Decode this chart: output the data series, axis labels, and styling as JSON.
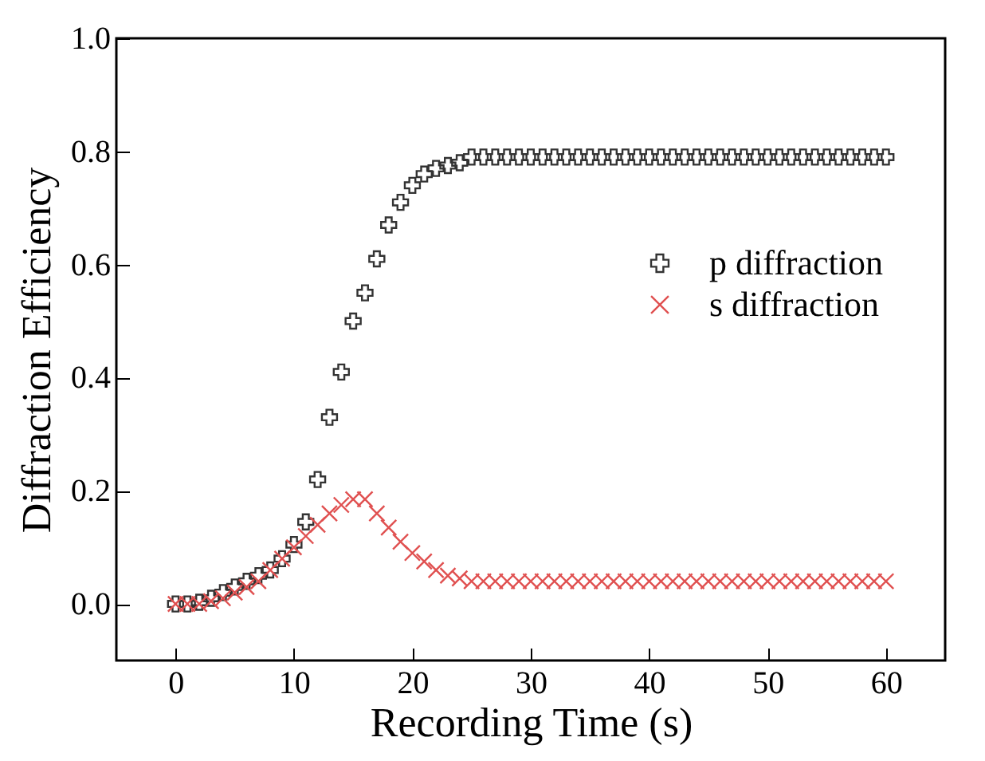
{
  "chart_data": {
    "type": "scatter",
    "xlabel": "Recording Time (s)",
    "ylabel": "Diffraction Efficiency",
    "x": [
      0,
      1,
      2,
      3,
      4,
      5,
      6,
      7,
      8,
      9,
      10,
      11,
      12,
      13,
      14,
      15,
      16,
      17,
      18,
      19,
      20,
      21,
      22,
      23,
      24,
      25,
      26,
      27,
      28,
      29,
      30,
      31,
      32,
      33,
      34,
      35,
      36,
      37,
      38,
      39,
      40,
      41,
      42,
      43,
      44,
      45,
      46,
      47,
      48,
      49,
      50,
      51,
      52,
      53,
      54,
      55,
      56,
      57,
      58,
      59,
      60
    ],
    "series": [
      {
        "name": "p diffraction",
        "color": "#333333",
        "marker": "cross",
        "values": [
          0,
          0,
          0.003,
          0.01,
          0.02,
          0.03,
          0.04,
          0.05,
          0.06,
          0.08,
          0.105,
          0.145,
          0.22,
          0.33,
          0.41,
          0.5,
          0.55,
          0.61,
          0.67,
          0.71,
          0.74,
          0.76,
          0.77,
          0.775,
          0.78,
          0.79,
          0.79,
          0.79,
          0.79,
          0.79,
          0.79,
          0.79,
          0.79,
          0.79,
          0.79,
          0.79,
          0.79,
          0.79,
          0.79,
          0.79,
          0.79,
          0.79,
          0.79,
          0.79,
          0.79,
          0.79,
          0.79,
          0.79,
          0.79,
          0.79,
          0.79,
          0.79,
          0.79,
          0.79,
          0.79,
          0.79,
          0.79,
          0.79,
          0.79,
          0.79,
          0.79
        ]
      },
      {
        "name": "s diffraction",
        "color": "#e05050",
        "marker": "x",
        "values": [
          0,
          0,
          0,
          0.005,
          0.01,
          0.02,
          0.03,
          0.04,
          0.06,
          0.08,
          0.1,
          0.12,
          0.14,
          0.16,
          0.175,
          0.185,
          0.185,
          0.16,
          0.135,
          0.11,
          0.09,
          0.075,
          0.06,
          0.05,
          0.045,
          0.04,
          0.04,
          0.04,
          0.04,
          0.04,
          0.04,
          0.04,
          0.04,
          0.04,
          0.04,
          0.04,
          0.04,
          0.04,
          0.04,
          0.04,
          0.04,
          0.04,
          0.04,
          0.04,
          0.04,
          0.04,
          0.04,
          0.04,
          0.04,
          0.04,
          0.04,
          0.04,
          0.04,
          0.04,
          0.04,
          0.04,
          0.04,
          0.04,
          0.04,
          0.04,
          0.04
        ]
      }
    ],
    "xlim": [
      -5,
      65
    ],
    "xticks": [
      0,
      10,
      20,
      30,
      40,
      50,
      60
    ],
    "ylim": [
      -0.1,
      1.0
    ],
    "yticks": [
      {
        "value": 0,
        "label": "0.0"
      },
      0.2,
      0.4,
      0.6,
      0.8,
      {
        "value": 1,
        "label": "1.0"
      }
    ],
    "grid": false,
    "legend": "right"
  }
}
